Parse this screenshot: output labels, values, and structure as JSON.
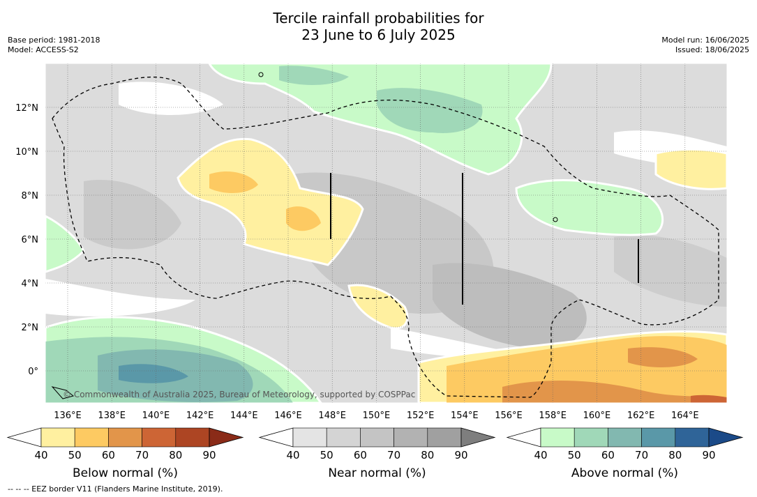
{
  "title_line1": "Tercile rainfall probabilities for",
  "title_line2": "23 June to 6 July 2025",
  "meta_left": {
    "base_period": "Base period: 1981-2018",
    "model": "Model: ACCESS-S2"
  },
  "meta_right": {
    "model_run": "Model run: 16/06/2025",
    "issued": "Issued: 18/06/2025"
  },
  "map": {
    "lon_labels": [
      "136°E",
      "138°E",
      "140°E",
      "142°E",
      "144°E",
      "146°E",
      "148°E",
      "150°E",
      "152°E",
      "154°E",
      "156°E",
      "158°E",
      "160°E",
      "162°E",
      "164°E"
    ],
    "lat_labels": [
      "12°N",
      "10°N",
      "8°N",
      "6°N",
      "4°N",
      "2°N",
      "0°"
    ],
    "copyright": "© Commonwealth of Australia 2025, Bureau of Meteorology, supported by COSPPac"
  },
  "colorbars": [
    {
      "label": "Below normal (%)",
      "ticks": [
        "40",
        "50",
        "60",
        "70",
        "80",
        "90"
      ],
      "colors": [
        "#fff0a0",
        "#fdca62",
        "#e2954a",
        "#cd6535",
        "#ad4523",
        "#8a2b18"
      ]
    },
    {
      "label": "Near normal (%)",
      "ticks": [
        "40",
        "50",
        "60",
        "70",
        "80",
        "90"
      ],
      "colors": [
        "#e4e4e4",
        "#d4d4d4",
        "#c4c4c4",
        "#b2b2b2",
        "#a0a0a0",
        "#7e7e7e"
      ]
    },
    {
      "label": "Above normal (%)",
      "ticks": [
        "40",
        "50",
        "60",
        "70",
        "80",
        "90"
      ],
      "colors": [
        "#c8fac8",
        "#a0d8b8",
        "#82b8b0",
        "#5a98a8",
        "#2f6498",
        "#1b4a88"
      ]
    }
  ],
  "footer": "--  --  -- EEZ border V11 (Flanders Marine Institute, 2019)."
}
